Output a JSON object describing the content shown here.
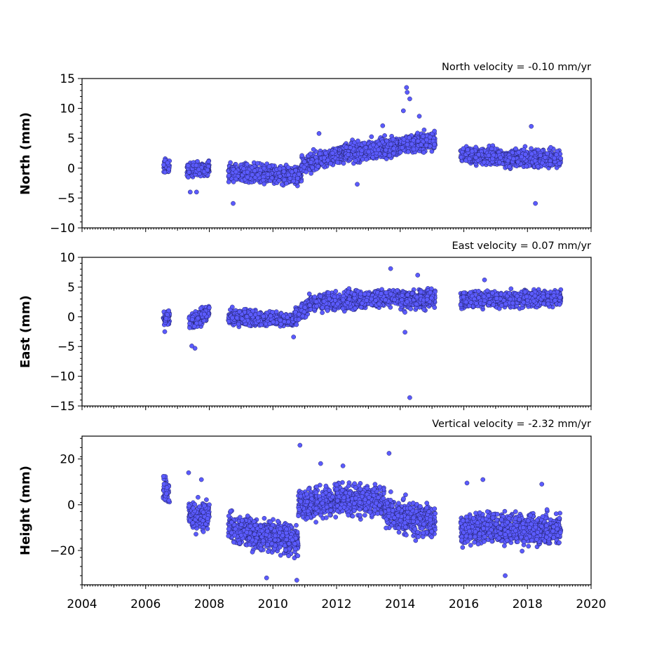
{
  "colors": {
    "marker_fill": "#5b5bff",
    "marker_edge": "#1a1a55",
    "frame": "#000000"
  },
  "chart_data": [
    {
      "type": "scatter",
      "title": "North velocity = -0.10 mm/yr",
      "ylabel": "North (mm)",
      "xlim": [
        2004,
        2020
      ],
      "ylim": [
        -10,
        15
      ],
      "yticks": [
        -10,
        -5,
        0,
        5,
        10,
        15
      ],
      "ytick_labels": [
        "−10",
        "−5",
        "0",
        "5",
        "10",
        "15"
      ],
      "grid": false,
      "series": [
        {
          "style": "trend",
          "segments": [
            {
              "x": [
                2006.55,
                2006.75
              ],
              "y": [
                0.2,
                0.4
              ],
              "spread": 1.8
            },
            {
              "x": [
                2007.3,
                2008.0
              ],
              "y": [
                -0.3,
                0.0
              ],
              "spread": 1.7
            },
            {
              "x": [
                2008.6,
                2010.9
              ],
              "y": [
                -0.8,
                -1.2
              ],
              "spread": 2.2
            },
            {
              "x": [
                2010.9,
                2012.2
              ],
              "y": [
                0.5,
                2.5
              ],
              "spread": 2.2
            },
            {
              "x": [
                2012.2,
                2014.0
              ],
              "y": [
                2.6,
                3.6
              ],
              "spread": 2.4
            },
            {
              "x": [
                2014.0,
                2015.1
              ],
              "y": [
                4.0,
                4.6
              ],
              "spread": 2.2
            },
            {
              "x": [
                2015.9,
                2017.3
              ],
              "y": [
                2.3,
                1.8
              ],
              "spread": 2.0
            },
            {
              "x": [
                2017.3,
                2019.05
              ],
              "y": [
                1.5,
                1.6
              ],
              "spread": 2.2
            }
          ],
          "outliers": [
            [
              2008.75,
              -5.9
            ],
            [
              2014.2,
              13.5
            ],
            [
              2014.22,
              12.7
            ],
            [
              2014.3,
              11.6
            ],
            [
              2014.1,
              9.6
            ],
            [
              2014.6,
              8.7
            ],
            [
              2012.65,
              -2.7
            ],
            [
              2018.25,
              -5.9
            ],
            [
              2018.12,
              7.0
            ],
            [
              2011.45,
              5.8
            ],
            [
              2013.45,
              7.1
            ],
            [
              2007.6,
              -4.0
            ],
            [
              2007.4,
              -4.0
            ]
          ]
        }
      ]
    },
    {
      "type": "scatter",
      "title": "East velocity = 0.07 mm/yr",
      "ylabel": "East (mm)",
      "xlim": [
        2004,
        2020
      ],
      "ylim": [
        -15,
        10
      ],
      "yticks": [
        -15,
        -10,
        -5,
        0,
        5,
        10
      ],
      "ytick_labels": [
        "−15",
        "−10",
        "−5",
        "0",
        "5",
        "10"
      ],
      "grid": false,
      "series": [
        {
          "style": "trend",
          "segments": [
            {
              "x": [
                2006.55,
                2006.75
              ],
              "y": [
                -0.2,
                0.0
              ],
              "spread": 1.6
            },
            {
              "x": [
                2007.35,
                2008.0
              ],
              "y": [
                -1.0,
                0.8
              ],
              "spread": 2.0
            },
            {
              "x": [
                2008.6,
                2010.7
              ],
              "y": [
                0.0,
                -0.6
              ],
              "spread": 1.8
            },
            {
              "x": [
                2010.7,
                2011.3
              ],
              "y": [
                0.0,
                2.7
              ],
              "spread": 1.9
            },
            {
              "x": [
                2011.3,
                2014.0
              ],
              "y": [
                2.3,
                3.4
              ],
              "spread": 2.2
            },
            {
              "x": [
                2014.0,
                2015.1
              ],
              "y": [
                2.8,
                3.1
              ],
              "spread": 2.5
            },
            {
              "x": [
                2015.9,
                2019.05
              ],
              "y": [
                2.8,
                3.2
              ],
              "spread": 2.0
            }
          ],
          "outliers": [
            [
              2014.3,
              -13.6
            ],
            [
              2013.7,
              8.1
            ],
            [
              2007.55,
              -5.3
            ],
            [
              2007.45,
              -4.9
            ],
            [
              2014.55,
              7.0
            ],
            [
              2016.65,
              6.2
            ],
            [
              2006.6,
              -2.5
            ],
            [
              2014.15,
              -2.6
            ],
            [
              2010.65,
              -3.4
            ]
          ]
        }
      ]
    },
    {
      "type": "scatter",
      "title": "Vertical velocity = -2.32 mm/yr",
      "ylabel": "Height (mm)",
      "xlim": [
        2004,
        2020
      ],
      "ylim": [
        -35,
        30
      ],
      "yticks": [
        -20,
        0,
        20
      ],
      "ytick_labels": [
        "−20",
        "0",
        "20"
      ],
      "xticks": [
        2004,
        2006,
        2008,
        2010,
        2012,
        2014,
        2016,
        2018,
        2020
      ],
      "xtick_labels": [
        "2004",
        "2006",
        "2008",
        "2010",
        "2012",
        "2014",
        "2016",
        "2018",
        "2020"
      ],
      "grid": false,
      "series": [
        {
          "style": "trend",
          "segments": [
            {
              "x": [
                2006.55,
                2006.75
              ],
              "y": [
                9.0,
                4.0
              ],
              "spread": 8.0
            },
            {
              "x": [
                2007.35,
                2008.0
              ],
              "y": [
                -5.0,
                -4.0
              ],
              "spread": 9.0
            },
            {
              "x": [
                2008.6,
                2010.8
              ],
              "y": [
                -10.0,
                -16.0
              ],
              "spread": 11.0
            },
            {
              "x": [
                2010.8,
                2012.0
              ],
              "y": [
                0.0,
                2.0
              ],
              "spread": 10.0
            },
            {
              "x": [
                2012.0,
                2013.5
              ],
              "y": [
                3.0,
                1.0
              ],
              "spread": 10.0
            },
            {
              "x": [
                2013.5,
                2015.1
              ],
              "y": [
                -3.0,
                -8.0
              ],
              "spread": 11.0
            },
            {
              "x": [
                2015.9,
                2019.05
              ],
              "y": [
                -10.0,
                -11.0
              ],
              "spread": 10.0
            }
          ],
          "outliers": [
            [
              2010.85,
              26.0
            ],
            [
              2013.65,
              22.5
            ],
            [
              2010.75,
              -33.0
            ],
            [
              2009.8,
              -32.0
            ],
            [
              2016.6,
              11.0
            ],
            [
              2016.1,
              9.5
            ],
            [
              2018.45,
              9.0
            ],
            [
              2017.3,
              -31.0
            ],
            [
              2012.2,
              17.0
            ],
            [
              2011.5,
              18.0
            ],
            [
              2007.35,
              14.0
            ],
            [
              2007.75,
              11.0
            ]
          ]
        }
      ]
    }
  ]
}
